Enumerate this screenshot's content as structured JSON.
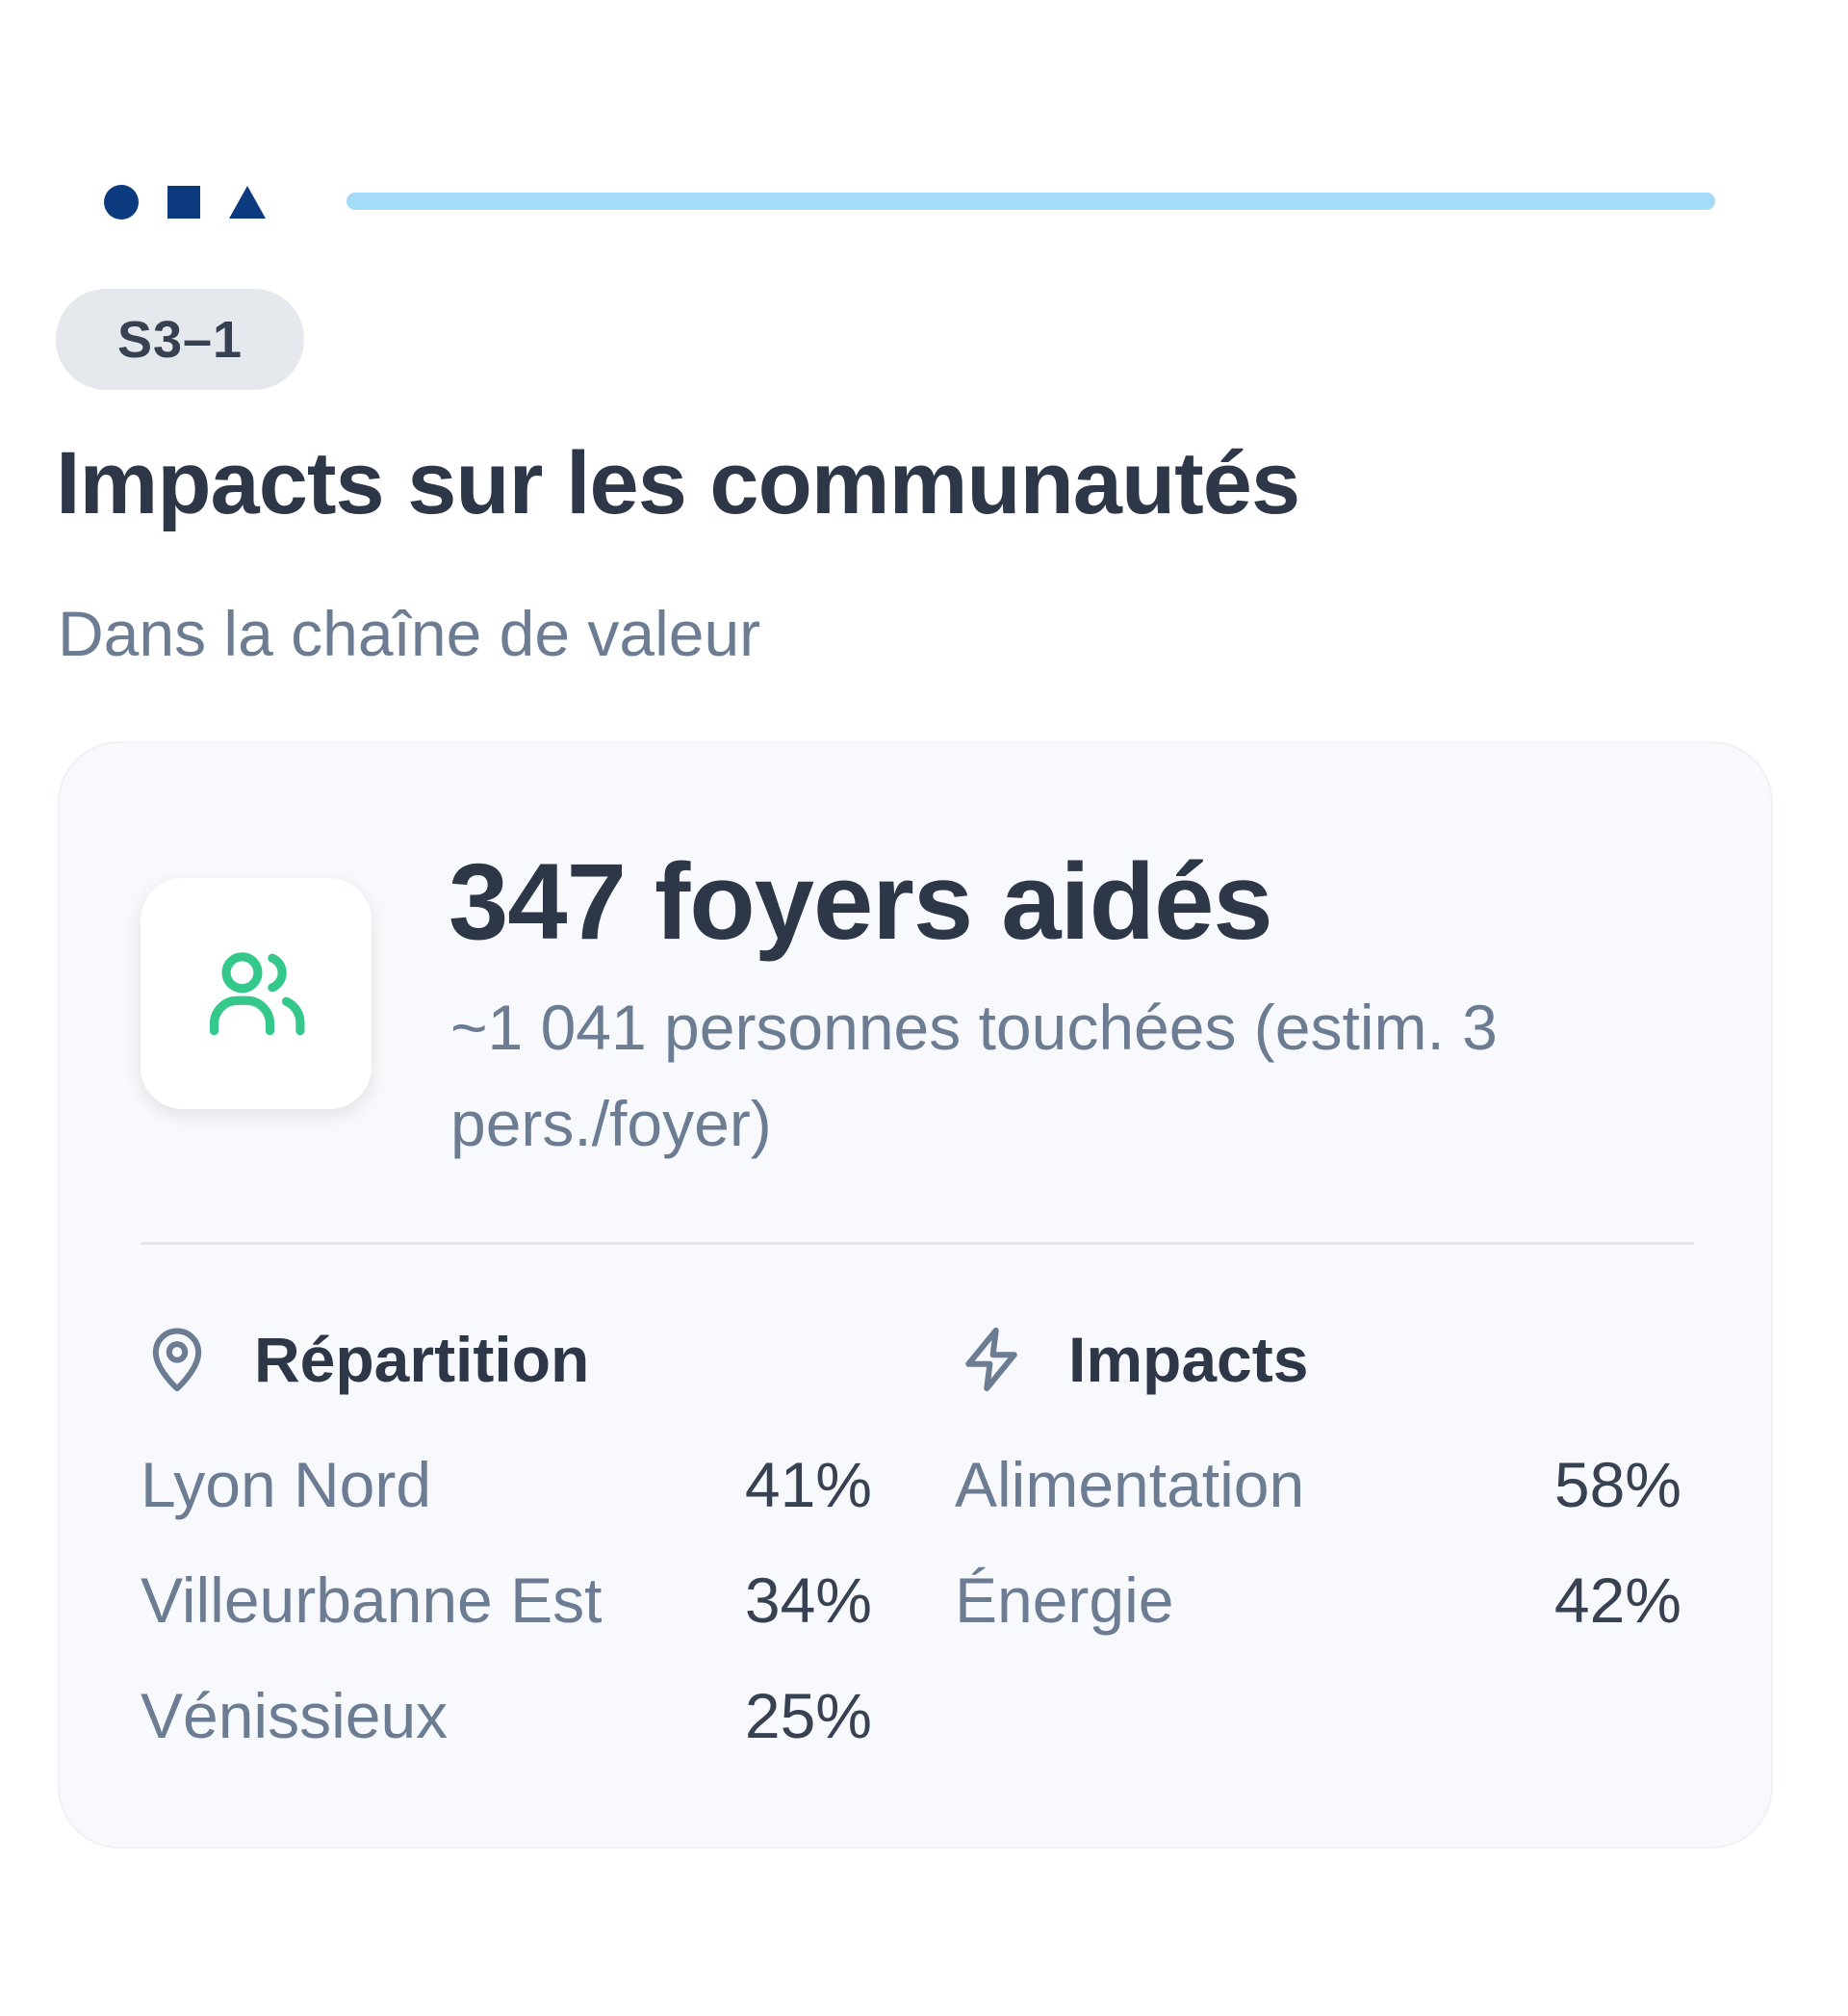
{
  "header": {
    "shape_icons": [
      "circle-icon",
      "square-icon",
      "triangle-icon"
    ],
    "progress_fraction": 1.0,
    "colors": {
      "shapes": "#0b3a7e",
      "progress": "#a4dcf8"
    }
  },
  "badge": {
    "label": "S3–1"
  },
  "page": {
    "title": "Impacts sur les communautés",
    "subtitle": "Dans la chaîne de valeur"
  },
  "card": {
    "icon": "users-icon",
    "icon_color": "#34c98a",
    "kpi_title": "347 foyers aidés",
    "kpi_sub": "~1 041 personnes touchées (estim. 3 pers./foyer)",
    "repartition": {
      "icon": "map-pin-icon",
      "label": "Répartition",
      "rows": [
        {
          "label": "Lyon Nord",
          "value": "41%"
        },
        {
          "label": "Villeurbanne Est",
          "value": "34%"
        },
        {
          "label": "Vénissieux",
          "value": "25%"
        }
      ]
    },
    "impacts": {
      "icon": "lightning-icon",
      "label": "Impacts",
      "rows": [
        {
          "label": "Alimentation",
          "value": "58%"
        },
        {
          "label": "Énergie",
          "value": "42%"
        }
      ]
    }
  }
}
